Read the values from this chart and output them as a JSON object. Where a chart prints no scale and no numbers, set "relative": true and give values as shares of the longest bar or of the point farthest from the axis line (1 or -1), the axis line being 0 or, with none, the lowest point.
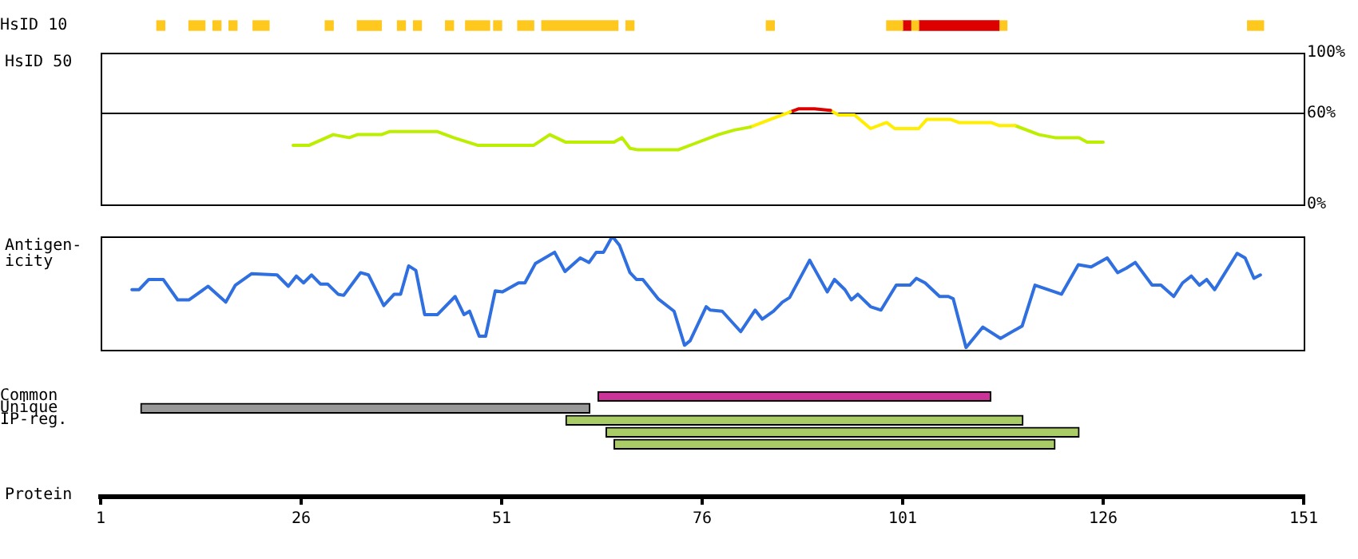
{
  "chart_data": [
    {
      "type": "bar",
      "orientation": "horizontal",
      "categories": [
        "HsID 10"
      ],
      "xlim": [
        1,
        151
      ],
      "xticks": [
        1,
        26,
        51,
        76,
        101,
        126,
        151
      ],
      "tick_labels": "y",
      "series": [
        {
          "color": "#ffc81e",
          "base": [
            8
          ],
          "values": [
            1
          ]
        },
        {
          "color": "#ffc81e",
          "base": [
            12
          ],
          "values": [
            2
          ]
        },
        {
          "color": "#ffc81e",
          "base": [
            15
          ],
          "values": [
            1
          ]
        },
        {
          "color": "#ffc81e",
          "base": [
            17
          ],
          "values": [
            1
          ]
        },
        {
          "color": "#ffc81e",
          "base": [
            20
          ],
          "values": [
            2
          ]
        },
        {
          "color": "#ffc81e",
          "base": [
            29
          ],
          "values": [
            1
          ]
        },
        {
          "color": "#ffc81e",
          "base": [
            33
          ],
          "values": [
            3
          ]
        },
        {
          "color": "#ffc81e",
          "base": [
            38
          ],
          "values": [
            1
          ]
        },
        {
          "color": "#ffc81e",
          "base": [
            40
          ],
          "values": [
            1
          ]
        },
        {
          "color": "#ffc81e",
          "base": [
            44
          ],
          "values": [
            1
          ]
        },
        {
          "color": "#ffc81e",
          "base": [
            46.5
          ],
          "values": [
            3
          ]
        },
        {
          "color": "#ffc81e",
          "base": [
            50
          ],
          "values": [
            1
          ]
        },
        {
          "color": "#ffc81e",
          "base": [
            53
          ],
          "values": [
            2
          ]
        },
        {
          "color": "#ffc81e",
          "base": [
            56
          ],
          "values": [
            9.5
          ]
        },
        {
          "color": "#ffc81e",
          "base": [
            66.5
          ],
          "values": [
            1
          ]
        },
        {
          "color": "#ffc81e",
          "base": [
            84
          ],
          "values": [
            1
          ]
        },
        {
          "color": "#ffc81e",
          "base": [
            99
          ],
          "values": [
            2
          ]
        },
        {
          "color": "#dd0000",
          "base": [
            101
          ],
          "values": [
            1
          ]
        },
        {
          "color": "#ffc81e",
          "base": [
            102
          ],
          "values": [
            1
          ]
        },
        {
          "color": "#dd0000",
          "base": [
            103
          ],
          "values": [
            10
          ]
        },
        {
          "color": "#ffc81e",
          "base": [
            113
          ],
          "values": [
            1
          ]
        },
        {
          "color": "#ffc81e",
          "base": [
            144
          ],
          "values": [
            2
          ]
        }
      ]
    },
    {
      "type": "line",
      "ylabel": "HsID 50",
      "xlim": [
        1,
        151
      ],
      "xticks": [
        1,
        26,
        51,
        76,
        101,
        126,
        151
      ],
      "ylim": [
        0,
        100
      ],
      "yticks": [
        {
          "value": 0,
          "label": "0%"
        },
        {
          "value": 60,
          "label": "60%"
        },
        {
          "value": 100,
          "label": "100%"
        }
      ],
      "tick_labels": "y",
      "marker": "none",
      "ref_lines": [
        {
          "axis": "y",
          "value": 60,
          "color": "#000000"
        }
      ],
      "series": [
        {
          "color": "#bbee00",
          "x": [
            25,
            27,
            30,
            32,
            33,
            36,
            37,
            43,
            45,
            48,
            55,
            57,
            59,
            65,
            66,
            67,
            68,
            73,
            75,
            78,
            80,
            82
          ],
          "values": [
            39,
            39,
            46,
            44,
            46,
            46,
            48,
            48,
            44,
            39,
            39,
            46,
            41,
            41,
            44,
            37,
            36,
            36,
            40,
            46,
            49,
            51
          ]
        },
        {
          "color": "#ffee00",
          "x": [
            82,
            85,
            87
          ],
          "values": [
            51,
            57,
            61
          ]
        },
        {
          "color": "#dd0000",
          "x": [
            87,
            88,
            90,
            92
          ],
          "values": [
            61,
            63,
            63,
            62
          ]
        },
        {
          "color": "#ffee00",
          "x": [
            92,
            93,
            95,
            97,
            99,
            100,
            103,
            104,
            107,
            108,
            112,
            113,
            115
          ],
          "values": [
            62,
            59,
            59,
            50,
            54,
            50,
            50,
            56,
            56,
            54,
            54,
            52,
            52
          ]
        },
        {
          "color": "#bbee00",
          "x": [
            115,
            118,
            120,
            123,
            124,
            126
          ],
          "values": [
            52,
            46,
            44,
            44,
            41,
            41
          ]
        }
      ]
    },
    {
      "type": "line",
      "ylabel": "Antigen-\nicity",
      "relative": true,
      "xlim": [
        1,
        151
      ],
      "xticks": [
        1,
        26,
        51,
        76,
        101,
        126,
        151
      ],
      "tick_labels": false,
      "marker": "none",
      "x": [
        4.9,
        5.8,
        7.0,
        8.8,
        10.6,
        12.0,
        14.4,
        16.6,
        17.8,
        19.8,
        23.0,
        24.4,
        25.4,
        26.3,
        27.3,
        28.4,
        29.3,
        30.6,
        31.3,
        33.4,
        34.4,
        36.3,
        37.6,
        38.4,
        39.4,
        40.3,
        41.4,
        43.0,
        45.2,
        46.3,
        47.0,
        48.2,
        49.0,
        50.2,
        51.1,
        53.1,
        53.9,
        55.2,
        57.6,
        58.9,
        60.8,
        61.9,
        62.8,
        63.7,
        64.8,
        65.7,
        67.0,
        67.8,
        68.6,
        70.5,
        72.5,
        73.8,
        74.5,
        76.5,
        77.0,
        78.5,
        80.8,
        82.6,
        83.5,
        84.9,
        86.0,
        86.9,
        89.4,
        91.6,
        92.5,
        93.8,
        94.6,
        95.4,
        97.0,
        98.3,
        100.2,
        101.9,
        102.7,
        103.8,
        105.6,
        106.7,
        107.3,
        108.9,
        111.0,
        113.2,
        115.9,
        117.5,
        120.8,
        122.9,
        124.5,
        126.5,
        127.8,
        128.9,
        130.0,
        132.1,
        133.2,
        134.8,
        135.9,
        137.0,
        138.0,
        138.9,
        139.9,
        142.7,
        143.7,
        144.8,
        145.6
      ],
      "series": [
        {
          "color": "#2f6fe0",
          "values": [
            0.53,
            0.53,
            0.62,
            0.62,
            0.44,
            0.44,
            0.56,
            0.42,
            0.57,
            0.67,
            0.66,
            0.56,
            0.65,
            0.59,
            0.66,
            0.58,
            0.58,
            0.49,
            0.48,
            0.68,
            0.66,
            0.39,
            0.49,
            0.49,
            0.74,
            0.7,
            0.31,
            0.31,
            0.47,
            0.31,
            0.34,
            0.12,
            0.12,
            0.52,
            0.51,
            0.59,
            0.59,
            0.76,
            0.86,
            0.69,
            0.81,
            0.77,
            0.86,
            0.86,
            1.0,
            0.92,
            0.68,
            0.62,
            0.62,
            0.45,
            0.34,
            0.04,
            0.08,
            0.38,
            0.35,
            0.34,
            0.16,
            0.35,
            0.27,
            0.34,
            0.42,
            0.46,
            0.79,
            0.51,
            0.62,
            0.53,
            0.44,
            0.49,
            0.38,
            0.35,
            0.57,
            0.57,
            0.63,
            0.59,
            0.47,
            0.47,
            0.45,
            0.02,
            0.2,
            0.1,
            0.21,
            0.57,
            0.49,
            0.75,
            0.73,
            0.81,
            0.68,
            0.72,
            0.77,
            0.57,
            0.57,
            0.47,
            0.59,
            0.65,
            0.57,
            0.62,
            0.53,
            0.85,
            0.81,
            0.63,
            0.66
          ]
        }
      ]
    },
    {
      "type": "bar",
      "orientation": "horizontal",
      "categories": [
        "Common",
        "Unique",
        "IP-reg.",
        null,
        null
      ],
      "xlabel": "Protein",
      "xlim": [
        1,
        151
      ],
      "xticks": [
        1,
        26,
        51,
        76,
        101,
        126,
        151
      ],
      "base": [
        63,
        6,
        59,
        64,
        65
      ],
      "values": [
        49,
        56,
        57,
        59,
        55
      ],
      "colors": [
        "#cc3399",
        "#999999",
        "#aacc66",
        "#aacc66",
        "#aacc66"
      ]
    }
  ]
}
